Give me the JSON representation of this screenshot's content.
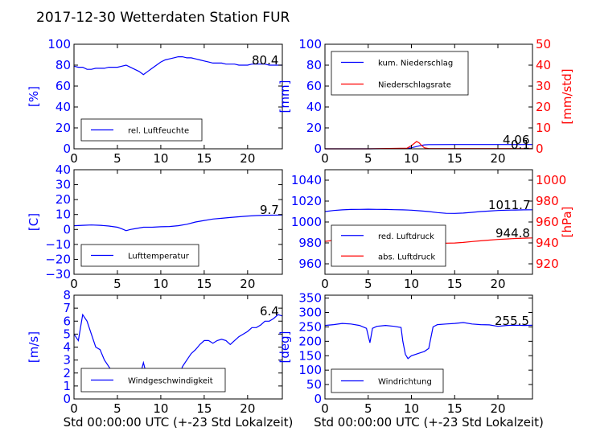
{
  "figure": {
    "title": "2017-12-30 Wetterdaten Station FUR"
  },
  "colors": {
    "primary": "#0000ff",
    "secondary": "#ff0000",
    "light": "#8080ff"
  },
  "chart_data": [
    {
      "type": "line",
      "ylabel": "[%]",
      "xlabel": "",
      "xlim": [
        0,
        24
      ],
      "ylim": [
        0,
        100
      ],
      "xticks": [
        0,
        5,
        10,
        15,
        20
      ],
      "yticks": [
        0,
        20,
        40,
        60,
        80,
        100
      ],
      "annotation": "80.4",
      "legend_position": "lower-left",
      "series": [
        {
          "name": "rel. Luftfeuchte",
          "color": "#0000ff",
          "axis": "left",
          "x": [
            0,
            0.5,
            1,
            1.5,
            2,
            2.5,
            3,
            3.5,
            4,
            4.5,
            5,
            5.5,
            6,
            6.5,
            7,
            7.5,
            8,
            8.5,
            9,
            9.5,
            10,
            10.5,
            11,
            11.5,
            12,
            12.5,
            13,
            13.5,
            14,
            14.5,
            15,
            15.5,
            16,
            16.5,
            17,
            17.5,
            18,
            18.5,
            19,
            19.5,
            20,
            20.5,
            21,
            21.5,
            22,
            22.5,
            23,
            23.5,
            24
          ],
          "y": [
            79,
            78,
            78,
            76,
            76,
            77,
            77,
            77,
            78,
            78,
            78,
            79,
            80,
            78,
            76,
            74,
            71,
            74,
            77,
            80,
            83,
            85,
            86,
            87,
            88,
            88,
            87,
            87,
            86,
            85,
            84,
            83,
            82,
            82,
            82,
            81,
            81,
            81,
            80,
            80,
            80,
            81,
            81,
            81,
            81,
            80,
            80,
            80,
            80
          ]
        }
      ]
    },
    {
      "type": "line",
      "ylabel": "[mm]",
      "y2label": "[mm/std]",
      "xlabel": "",
      "xlim": [
        0,
        24
      ],
      "ylim": [
        0,
        100
      ],
      "y2lim": [
        0,
        50
      ],
      "xticks": [
        0,
        5,
        10,
        15,
        20
      ],
      "yticks": [
        0,
        20,
        40,
        60,
        80,
        100
      ],
      "y2ticks": [
        0,
        10,
        20,
        30,
        40,
        50
      ],
      "annotations": [
        "4.06",
        "0.1"
      ],
      "legend_position": "upper-left",
      "series": [
        {
          "name": "kum. Niederschlag",
          "color": "#0000ff",
          "axis": "left",
          "x": [
            0,
            5,
            9.5,
            10,
            10.5,
            11,
            11.5,
            12,
            15,
            20,
            24
          ],
          "y": [
            0,
            0,
            0.2,
            1,
            2,
            3,
            3.8,
            4,
            4.06,
            4.06,
            4.06
          ]
        },
        {
          "name": "Niederschlagsrate",
          "color": "#ff0000",
          "axis": "right",
          "x": [
            0,
            5,
            9.5,
            10,
            10.3,
            10.6,
            10.9,
            11.2,
            11.5,
            12,
            15,
            20,
            24
          ],
          "y": [
            0,
            0,
            0.3,
            1.5,
            2.5,
            3.5,
            2.8,
            1.5,
            0.5,
            0.1,
            0.1,
            0.1,
            0.1
          ]
        }
      ]
    },
    {
      "type": "line",
      "ylabel": "[C]",
      "xlabel": "",
      "xlim": [
        0,
        24
      ],
      "ylim": [
        -30,
        40
      ],
      "xticks": [
        0,
        5,
        10,
        15,
        20
      ],
      "yticks": [
        -30,
        -20,
        -10,
        0,
        10,
        20,
        30,
        40
      ],
      "annotation": "9.7",
      "legend_position": "lower-left",
      "series": [
        {
          "name": "Lufttemperatur",
          "color": "#0000ff",
          "axis": "left",
          "x": [
            0,
            1,
            2,
            3,
            4,
            5,
            5.5,
            6,
            6.5,
            7,
            8,
            9,
            10,
            11,
            12,
            13,
            14,
            15,
            16,
            17,
            18,
            19,
            20,
            21,
            22,
            23,
            24
          ],
          "y": [
            2.5,
            2.8,
            3,
            2.8,
            2.3,
            1.5,
            0.5,
            -0.8,
            0,
            0.5,
            1.5,
            1.5,
            1.8,
            2,
            2.5,
            3.5,
            5,
            6,
            7,
            7.5,
            8,
            8.5,
            9,
            9.3,
            9.5,
            9.6,
            9.7
          ]
        }
      ]
    },
    {
      "type": "line",
      "ylabel": "",
      "y2label": "[hPa]",
      "xlabel": "",
      "xlim": [
        0,
        24
      ],
      "ylim": [
        950,
        1050
      ],
      "y2lim": [
        910,
        1010
      ],
      "xticks": [
        0,
        5,
        10,
        15,
        20
      ],
      "yticks": [
        960,
        980,
        1000,
        1020,
        1040
      ],
      "y2ticks": [
        920,
        940,
        960,
        980,
        1000
      ],
      "annotations": [
        "1011.7",
        "944.8"
      ],
      "legend_position": "lower-left",
      "series": [
        {
          "name": "red. Luftdruck",
          "color": "#0000ff",
          "axis": "left",
          "x": [
            0,
            1,
            2,
            3,
            4,
            5,
            6,
            7,
            8,
            9,
            10,
            11,
            12,
            13,
            14,
            15,
            16,
            17,
            18,
            19,
            20,
            21,
            22,
            23,
            24
          ],
          "y": [
            1010,
            1011,
            1011.6,
            1012,
            1012.1,
            1012.2,
            1012.1,
            1012,
            1011.8,
            1011.6,
            1011.3,
            1010.7,
            1010,
            1009,
            1008.3,
            1008.2,
            1008.5,
            1009.2,
            1010,
            1010.5,
            1011,
            1011.3,
            1011.5,
            1011.6,
            1011.7
          ]
        },
        {
          "name": "abs. Luftdruck",
          "color": "#ff0000",
          "axis": "right",
          "x": [
            0,
            1,
            2,
            3,
            4,
            5,
            6,
            7,
            8,
            9,
            10,
            11,
            12,
            13,
            14,
            15,
            16,
            17,
            18,
            19,
            20,
            21,
            22,
            23,
            24
          ],
          "y": [
            941.5,
            942.5,
            943.2,
            943.7,
            943.9,
            944,
            943.8,
            943.6,
            943.4,
            943.1,
            942.7,
            942,
            941.2,
            940.4,
            939.8,
            939.9,
            940.5,
            941.3,
            942,
            942.7,
            943.3,
            943.8,
            944.2,
            944.5,
            944.8
          ]
        }
      ]
    },
    {
      "type": "line",
      "ylabel": "[m/s]",
      "xlabel": "Std 00:00:00 UTC (+-23 Std Lokalzeit)",
      "xlim": [
        0,
        24
      ],
      "ylim": [
        0,
        8
      ],
      "xticks": [
        0,
        5,
        10,
        15,
        20
      ],
      "yticks": [
        0,
        1,
        2,
        3,
        4,
        5,
        6,
        7,
        8
      ],
      "annotation": "6.4",
      "legend_position": "lower-left",
      "series": [
        {
          "name": "Windgeschwindigkeit",
          "color": "#0000ff",
          "axis": "left",
          "x": [
            0,
            0.5,
            1,
            1.5,
            2,
            2.5,
            3,
            3.5,
            4,
            4.5,
            5,
            5.5,
            6,
            6.5,
            7,
            7.5,
            8,
            8.5,
            9,
            9.5,
            10,
            10.5,
            11,
            11.5,
            12,
            12.5,
            13,
            13.5,
            14,
            14.5,
            15,
            15.5,
            16,
            16.5,
            17,
            17.5,
            18,
            18.5,
            19,
            19.5,
            20,
            20.5,
            21,
            21.5,
            22,
            22.5,
            23,
            23.5,
            24
          ],
          "y": [
            5,
            4.5,
            6.5,
            6,
            5,
            4,
            3.8,
            3,
            2.5,
            2,
            1.5,
            1,
            0.8,
            1.2,
            1.5,
            1.5,
            2.8,
            1.5,
            1,
            1.3,
            1.8,
            2.2,
            1.5,
            1,
            1.6,
            2.5,
            3,
            3.5,
            3.8,
            4.2,
            4.5,
            4.5,
            4.3,
            4.5,
            4.6,
            4.5,
            4.2,
            4.5,
            4.8,
            5,
            5.2,
            5.5,
            5.5,
            5.7,
            6,
            6,
            6.2,
            6.5,
            6.4
          ]
        }
      ]
    },
    {
      "type": "line",
      "ylabel": "[deg]",
      "xlabel": "Std 00:00:00 UTC (+-23 Std Lokalzeit)",
      "xlim": [
        0,
        24
      ],
      "ylim": [
        0,
        360
      ],
      "xticks": [
        0,
        5,
        10,
        15,
        20
      ],
      "yticks": [
        0,
        50,
        100,
        150,
        200,
        250,
        300,
        350
      ],
      "annotation": "255.5",
      "legend_position": "lower-left",
      "series": [
        {
          "name": "Windrichtung",
          "color": "#0000ff",
          "axis": "left",
          "x": [
            0,
            1,
            2,
            3,
            4,
            4.8,
            5.2,
            5.5,
            6,
            7,
            8,
            8.8,
            9,
            9.3,
            9.6,
            10,
            11,
            11.5,
            12,
            12.5,
            13,
            14,
            15,
            16,
            17,
            18,
            19,
            20,
            21,
            22,
            23,
            24
          ],
          "y": [
            255,
            258,
            262,
            260,
            255,
            245,
            195,
            245,
            252,
            255,
            252,
            248,
            200,
            155,
            140,
            150,
            160,
            165,
            175,
            250,
            258,
            260,
            262,
            265,
            260,
            258,
            257,
            252,
            255,
            256,
            255,
            255.5
          ]
        }
      ]
    }
  ]
}
